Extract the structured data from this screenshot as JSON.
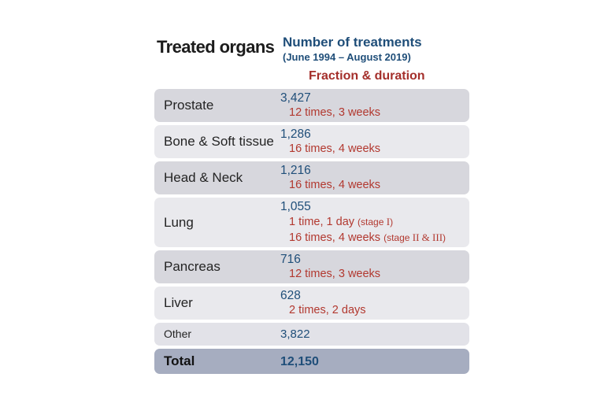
{
  "header": {
    "title": "Treated organs",
    "treatments_label": "Number of treatments",
    "treatments_period": "(June 1994 – August 2019)",
    "fraction_label": "Fraction & duration"
  },
  "colors": {
    "accent_blue": "#1f4e79",
    "accent_red": "#a42f2b",
    "row_dark": "#d7d7dd",
    "row_light": "#e9e9ed",
    "row_other": "#e2e2e8",
    "row_total": "#a6adc0",
    "background": "#ffffff"
  },
  "table": {
    "rows": [
      {
        "organ": "Prostate",
        "count": "3,427",
        "fraction": "12 times, 3 weeks"
      },
      {
        "organ": "Bone & Soft tissue",
        "count": "1,286",
        "fraction": "16 times, 4 weeks"
      },
      {
        "organ": "Head & Neck",
        "count": "1,216",
        "fraction": "16 times, 4 weeks"
      },
      {
        "organ": "Lung",
        "count": "1,055",
        "detail1_main": "1 time, 1 day ",
        "detail1_note_open": "(stage ",
        "detail1_numerals": "I",
        "detail1_note_close": ")",
        "detail2_main": "16 times, 4 weeks ",
        "detail2_note_open": "(stage ",
        "detail2_numerals": "II & III",
        "detail2_note_close": ")"
      },
      {
        "organ": "Pancreas",
        "count": "716",
        "fraction": "12 times, 3 weeks"
      },
      {
        "organ": "Liver",
        "count": "628",
        "fraction": "2 times, 2 days"
      },
      {
        "organ": "Other",
        "count": "3,822"
      },
      {
        "organ": "Total",
        "count": "12,150"
      }
    ]
  },
  "chart_data": {
    "type": "table",
    "title": "Treated organs",
    "columns": [
      "Treated organs",
      "Number of treatments (June 1994 – August 2019)",
      "Fraction & duration"
    ],
    "rows": [
      [
        "Prostate",
        3427,
        "12 times, 3 weeks"
      ],
      [
        "Bone & Soft tissue",
        1286,
        "16 times, 4 weeks"
      ],
      [
        "Head & Neck",
        1216,
        "16 times, 4 weeks"
      ],
      [
        "Lung",
        1055,
        "1 time, 1 day (stage I); 16 times, 4 weeks (stage II & III)"
      ],
      [
        "Pancreas",
        716,
        "12 times, 3 weeks"
      ],
      [
        "Liver",
        628,
        "2 times, 2 days"
      ],
      [
        "Other",
        3822,
        ""
      ],
      [
        "Total",
        12150,
        ""
      ]
    ],
    "total": 12150
  }
}
